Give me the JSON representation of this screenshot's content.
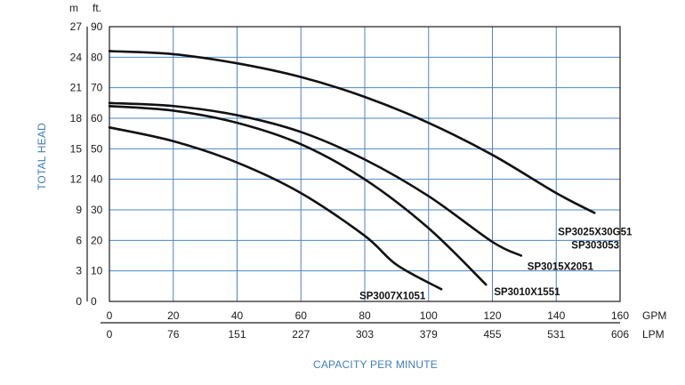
{
  "chart_data": {
    "type": "line",
    "ylabel": "TOTAL HEAD",
    "xlabel": "CAPACITY PER MINUTE",
    "y_units": {
      "meters": "m",
      "feet": "ft."
    },
    "x_units": {
      "gpm": "GPM",
      "lpm": "LPM"
    },
    "ylim_ft": [
      0,
      90
    ],
    "xlim_gpm": [
      0,
      160
    ],
    "grid": true,
    "y_ticks_m": [
      "0",
      "3",
      "6",
      "9",
      "12",
      "15",
      "18",
      "21",
      "24",
      "27"
    ],
    "y_ticks_ft": [
      "0",
      "10",
      "20",
      "30",
      "40",
      "50",
      "60",
      "70",
      "80",
      "90"
    ],
    "x_ticks_gpm": [
      "0",
      "20",
      "40",
      "60",
      "80",
      "100",
      "120",
      "140",
      "160"
    ],
    "x_ticks_lpm": [
      "0",
      "76",
      "151",
      "227",
      "303",
      "379",
      "455",
      "531",
      "606"
    ],
    "series": [
      {
        "name": "SP3007X1051",
        "label_lines": [
          "SP3007X1051"
        ],
        "points": [
          [
            0,
            57
          ],
          [
            20,
            52.5
          ],
          [
            40,
            45.5
          ],
          [
            60,
            35.5
          ],
          [
            80,
            21.5
          ],
          [
            90,
            12
          ],
          [
            104,
            4
          ]
        ]
      },
      {
        "name": "SP3010X1551",
        "label_lines": [
          "SP3010X1551"
        ],
        "points": [
          [
            0,
            64
          ],
          [
            20,
            62.5
          ],
          [
            40,
            58.5
          ],
          [
            60,
            51.5
          ],
          [
            80,
            40
          ],
          [
            100,
            24
          ],
          [
            118,
            5.5
          ]
        ]
      },
      {
        "name": "SP3015X2051",
        "label_lines": [
          "SP3015X2051"
        ],
        "points": [
          [
            0,
            65
          ],
          [
            20,
            64
          ],
          [
            40,
            61
          ],
          [
            60,
            55.5
          ],
          [
            80,
            46.5
          ],
          [
            100,
            34.5
          ],
          [
            120,
            19.5
          ],
          [
            129,
            15
          ]
        ]
      },
      {
        "name": "SP3025X30G51 / SP303053",
        "label_lines": [
          "SP3025X30G51",
          "SP303053"
        ],
        "points": [
          [
            0,
            82
          ],
          [
            20,
            81
          ],
          [
            40,
            78
          ],
          [
            60,
            73.5
          ],
          [
            80,
            67
          ],
          [
            100,
            58.5
          ],
          [
            120,
            48
          ],
          [
            140,
            35.5
          ],
          [
            152,
            29
          ]
        ]
      }
    ],
    "colors": {
      "grid": "#4a86c5",
      "curve": "#111111",
      "axis_title": "#3f7fc0"
    }
  }
}
